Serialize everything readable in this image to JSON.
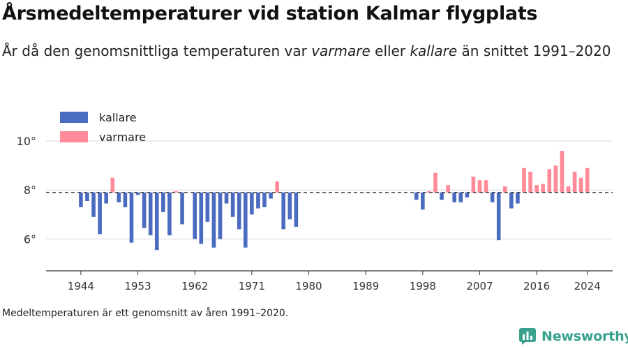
{
  "title": "Årsmedeltemperaturer vid station Kalmar flygplats",
  "subtitle": {
    "part1": "År då den genomsnittliga temperaturen var ",
    "warm_word": "varmare",
    "part2": " eller ",
    "cold_word": "kallare",
    "part3": " än snittet 1991–2020"
  },
  "footnote": "Medeltemperaturen är ett genomsnitt av åren 1991–2020.",
  "brand": {
    "name": "Newsworthy",
    "icon": "bar-chart-icon"
  },
  "legend": [
    {
      "label": "kallare",
      "color": "#4a6bbf"
    },
    {
      "label": "varmare",
      "color": "#ff8a98"
    }
  ],
  "chart_data": {
    "type": "bar",
    "baseline": 7.9,
    "ylim": [
      4.7,
      11.2
    ],
    "xlim": [
      1938.5,
      2028
    ],
    "yticks": [
      6,
      8,
      10
    ],
    "ytick_labels": [
      "6°",
      "8°",
      "10°"
    ],
    "xticks": [
      1944,
      1953,
      1962,
      1971,
      1980,
      1989,
      1998,
      2007,
      2016,
      2024
    ],
    "colors": {
      "kallare": "#4a6bbf",
      "varmare": "#ff8a98",
      "baseline": "#333333",
      "grid": "#d8d8d8"
    },
    "series": [
      {
        "name": "kallare",
        "points": [
          [
            1944,
            7.3
          ],
          [
            1945,
            7.55
          ],
          [
            1946,
            6.9
          ],
          [
            1947,
            6.2
          ],
          [
            1948,
            7.45
          ],
          [
            1950,
            7.5
          ],
          [
            1951,
            7.3
          ],
          [
            1952,
            5.85
          ],
          [
            1953,
            7.8
          ],
          [
            1954,
            6.45
          ],
          [
            1955,
            6.15
          ],
          [
            1956,
            5.55
          ],
          [
            1957,
            7.1
          ],
          [
            1958,
            6.15
          ],
          [
            1960,
            6.6
          ],
          [
            1962,
            6.0
          ],
          [
            1963,
            5.8
          ],
          [
            1964,
            6.7
          ],
          [
            1965,
            5.65
          ],
          [
            1966,
            6.0
          ],
          [
            1967,
            7.45
          ],
          [
            1968,
            6.9
          ],
          [
            1969,
            6.4
          ],
          [
            1970,
            5.65
          ],
          [
            1971,
            7.0
          ],
          [
            1972,
            7.25
          ],
          [
            1973,
            7.3
          ],
          [
            1974,
            7.65
          ],
          [
            1976,
            6.4
          ],
          [
            1977,
            6.8
          ],
          [
            1978,
            6.5
          ],
          [
            1997,
            7.6
          ],
          [
            1998,
            7.2
          ],
          [
            2001,
            7.6
          ],
          [
            2003,
            7.5
          ],
          [
            2004,
            7.5
          ],
          [
            2005,
            7.7
          ],
          [
            2009,
            7.5
          ],
          [
            2010,
            5.95
          ],
          [
            2012,
            7.25
          ],
          [
            2013,
            7.45
          ]
        ]
      },
      {
        "name": "varmare",
        "points": [
          [
            1949,
            8.5
          ],
          [
            1959,
            7.95
          ],
          [
            1975,
            8.35
          ],
          [
            1999,
            7.95
          ],
          [
            2000,
            8.7
          ],
          [
            2002,
            8.2
          ],
          [
            2006,
            8.55
          ],
          [
            2007,
            8.4
          ],
          [
            2008,
            8.4
          ],
          [
            2011,
            8.15
          ],
          [
            2014,
            8.9
          ],
          [
            2015,
            8.75
          ],
          [
            2016,
            8.2
          ],
          [
            2017,
            8.25
          ],
          [
            2018,
            8.85
          ],
          [
            2019,
            9.0
          ],
          [
            2020,
            9.6
          ],
          [
            2021,
            8.15
          ],
          [
            2022,
            8.75
          ],
          [
            2023,
            8.5
          ],
          [
            2024,
            8.9
          ]
        ]
      }
    ]
  }
}
